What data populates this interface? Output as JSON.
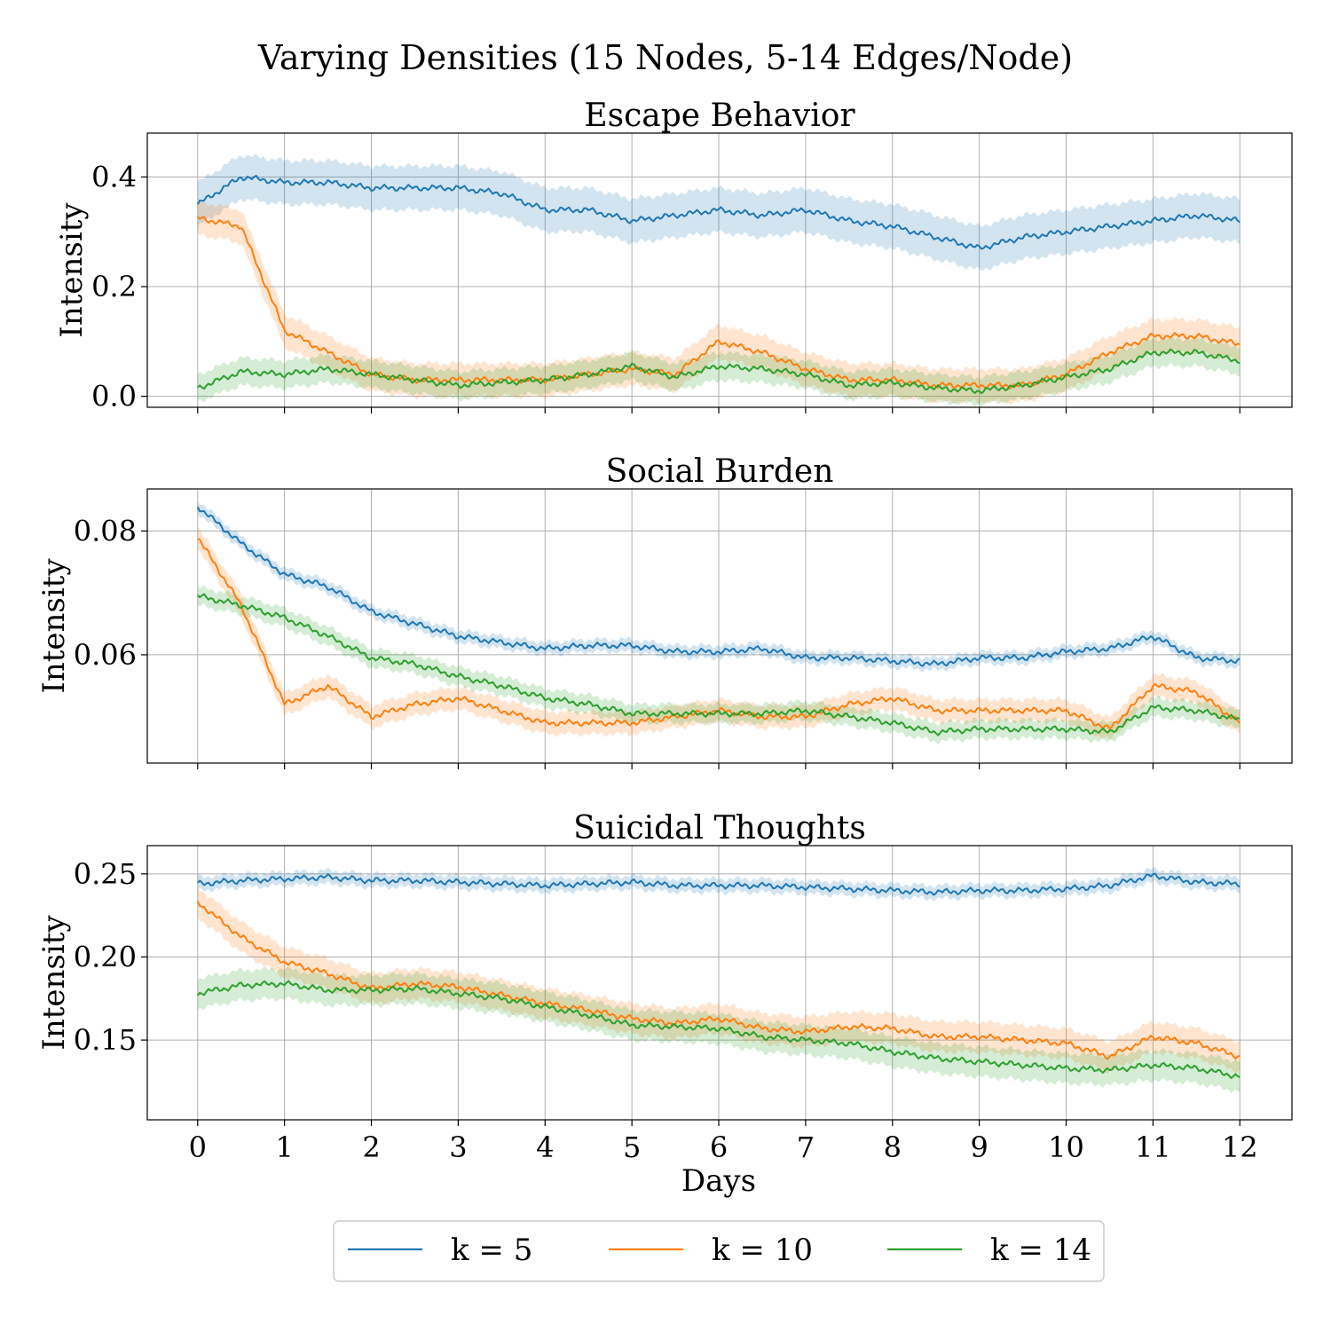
{
  "figure": {
    "suptitle": "Varying Densities (15 Nodes, 5-14 Edges/Node)",
    "xlabel": "Days",
    "ylabel": "Intensity"
  },
  "legend": {
    "items": [
      {
        "label": "k = 5",
        "color": "#1f77b4"
      },
      {
        "label": "k = 10",
        "color": "#ff7f0e"
      },
      {
        "label": "k = 14",
        "color": "#2ca02c"
      }
    ],
    "placement": "bottom-center"
  },
  "chart_data": [
    {
      "type": "line",
      "title": "Escape Behavior",
      "xlabel": "",
      "ylabel": "Intensity",
      "xlim": [
        -0.58,
        12.6
      ],
      "ylim": [
        -0.02,
        0.48
      ],
      "xticks": [
        0,
        1,
        2,
        3,
        4,
        5,
        6,
        7,
        8,
        9,
        10,
        11,
        12
      ],
      "yticks": [
        0.0,
        0.2,
        0.4
      ],
      "ytick_labels": [
        "0.0",
        "0.2",
        "0.4"
      ],
      "grid": true,
      "x": [
        0,
        0.5,
        1,
        1.5,
        2,
        2.5,
        3,
        3.5,
        4,
        4.5,
        5,
        5.5,
        6,
        6.5,
        7,
        7.5,
        8,
        8.5,
        9,
        9.5,
        10,
        10.5,
        11,
        11.5,
        12
      ],
      "series": [
        {
          "name": "k = 5",
          "color": "#1f77b4",
          "band": 0.04,
          "values": [
            0.35,
            0.4,
            0.39,
            0.39,
            0.38,
            0.38,
            0.38,
            0.37,
            0.34,
            0.34,
            0.32,
            0.33,
            0.34,
            0.33,
            0.34,
            0.32,
            0.31,
            0.29,
            0.27,
            0.29,
            0.3,
            0.31,
            0.32,
            0.33,
            0.32
          ]
        },
        {
          "name": "k = 10",
          "color": "#ff7f0e",
          "band": 0.03,
          "values": [
            0.325,
            0.31,
            0.12,
            0.08,
            0.04,
            0.03,
            0.03,
            0.03,
            0.03,
            0.04,
            0.05,
            0.04,
            0.1,
            0.08,
            0.05,
            0.03,
            0.03,
            0.02,
            0.02,
            0.02,
            0.04,
            0.08,
            0.11,
            0.11,
            0.095
          ]
        },
        {
          "name": "k = 14",
          "color": "#2ca02c",
          "band": 0.025,
          "values": [
            0.015,
            0.045,
            0.04,
            0.05,
            0.04,
            0.03,
            0.02,
            0.025,
            0.03,
            0.04,
            0.055,
            0.035,
            0.055,
            0.05,
            0.04,
            0.02,
            0.025,
            0.015,
            0.01,
            0.02,
            0.035,
            0.05,
            0.08,
            0.08,
            0.065
          ]
        }
      ]
    },
    {
      "type": "line",
      "title": "Social Burden",
      "xlabel": "",
      "ylabel": "Intensity",
      "xlim": [
        -0.58,
        12.6
      ],
      "ylim": [
        0.0425,
        0.0868
      ],
      "xticks": [
        0,
        1,
        2,
        3,
        4,
        5,
        6,
        7,
        8,
        9,
        10,
        11,
        12
      ],
      "yticks": [
        0.06,
        0.08
      ],
      "ytick_labels": [
        "0.06",
        "0.08"
      ],
      "grid": true,
      "x": [
        0,
        0.5,
        1,
        1.5,
        2,
        2.5,
        3,
        3.5,
        4,
        4.5,
        5,
        5.5,
        6,
        6.5,
        7,
        7.5,
        8,
        8.5,
        9,
        9.5,
        10,
        10.5,
        11,
        11.5,
        12
      ],
      "series": [
        {
          "name": "k = 5",
          "color": "#1f77b4",
          "band": 0.001,
          "values": [
            0.084,
            0.078,
            0.073,
            0.071,
            0.067,
            0.065,
            0.063,
            0.062,
            0.061,
            0.0615,
            0.0615,
            0.0605,
            0.0605,
            0.061,
            0.0595,
            0.0595,
            0.059,
            0.0585,
            0.0595,
            0.0595,
            0.0605,
            0.061,
            0.063,
            0.0595,
            0.059
          ]
        },
        {
          "name": "k = 10",
          "color": "#ff7f0e",
          "band": 0.0018,
          "values": [
            0.079,
            0.068,
            0.052,
            0.055,
            0.05,
            0.052,
            0.053,
            0.051,
            0.049,
            0.049,
            0.049,
            0.05,
            0.051,
            0.05,
            0.05,
            0.052,
            0.053,
            0.051,
            0.051,
            0.051,
            0.051,
            0.048,
            0.055,
            0.054,
            0.049
          ]
        },
        {
          "name": "k = 14",
          "color": "#2ca02c",
          "band": 0.0015,
          "values": [
            0.0695,
            0.068,
            0.066,
            0.063,
            0.0595,
            0.0585,
            0.0565,
            0.055,
            0.053,
            0.052,
            0.0505,
            0.0505,
            0.0505,
            0.0505,
            0.051,
            0.05,
            0.049,
            0.0475,
            0.048,
            0.048,
            0.048,
            0.0475,
            0.0515,
            0.051,
            0.0495
          ]
        }
      ]
    },
    {
      "type": "line",
      "title": "Suicidal Thoughts",
      "xlabel": "Days",
      "ylabel": "Intensity",
      "xlim": [
        -0.58,
        12.6
      ],
      "ylim": [
        0.102,
        0.267
      ],
      "xticks": [
        0,
        1,
        2,
        3,
        4,
        5,
        6,
        7,
        8,
        9,
        10,
        11,
        12
      ],
      "xtick_labels": [
        "0",
        "1",
        "2",
        "3",
        "4",
        "5",
        "6",
        "7",
        "8",
        "9",
        "10",
        "11",
        "12"
      ],
      "yticks": [
        0.15,
        0.2,
        0.25
      ],
      "ytick_labels": [
        "0.15",
        "0.20",
        "0.25"
      ],
      "grid": true,
      "x": [
        0,
        0.5,
        1,
        1.5,
        2,
        2.5,
        3,
        3.5,
        4,
        4.5,
        5,
        5.5,
        6,
        6.5,
        7,
        7.5,
        8,
        8.5,
        9,
        9.5,
        10,
        10.5,
        11,
        11.5,
        12
      ],
      "series": [
        {
          "name": "k = 5",
          "color": "#1f77b4",
          "band": 0.004,
          "values": [
            0.244,
            0.246,
            0.247,
            0.248,
            0.246,
            0.246,
            0.245,
            0.244,
            0.243,
            0.244,
            0.245,
            0.243,
            0.243,
            0.243,
            0.242,
            0.241,
            0.24,
            0.239,
            0.24,
            0.24,
            0.241,
            0.243,
            0.249,
            0.245,
            0.244
          ]
        },
        {
          "name": "k = 10",
          "color": "#ff7f0e",
          "band": 0.009,
          "values": [
            0.233,
            0.212,
            0.197,
            0.19,
            0.181,
            0.184,
            0.182,
            0.177,
            0.172,
            0.168,
            0.163,
            0.16,
            0.163,
            0.157,
            0.155,
            0.158,
            0.157,
            0.152,
            0.152,
            0.15,
            0.148,
            0.14,
            0.152,
            0.148,
            0.14
          ]
        },
        {
          "name": "k = 14",
          "color": "#2ca02c",
          "band": 0.009,
          "values": [
            0.178,
            0.183,
            0.184,
            0.18,
            0.18,
            0.181,
            0.178,
            0.175,
            0.17,
            0.165,
            0.159,
            0.158,
            0.157,
            0.152,
            0.15,
            0.148,
            0.143,
            0.139,
            0.137,
            0.135,
            0.133,
            0.132,
            0.135,
            0.133,
            0.128
          ]
        }
      ]
    }
  ]
}
